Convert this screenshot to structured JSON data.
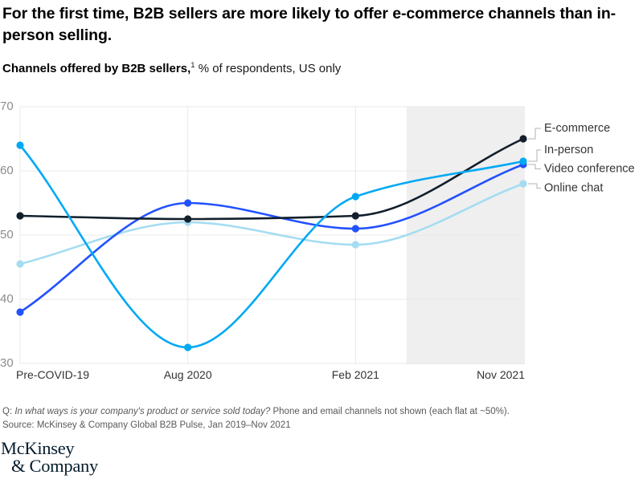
{
  "header": {
    "title": "For the first time, B2B sellers are more likely to offer e-commerce channels than in-person selling.",
    "subtitle_bold": "Channels offered by B2B sellers,",
    "subtitle_sup": "1",
    "subtitle_rest": " % of respondents, US only"
  },
  "chart_data": {
    "type": "line",
    "title": "Channels offered by B2B sellers, % of respondents, US only",
    "categories": [
      "Pre-COVID-19",
      "Aug 2020",
      "Feb 2021",
      "Nov 2021"
    ],
    "series": [
      {
        "name": "E-commerce",
        "color": "#121f2c",
        "values": [
          53,
          52.5,
          53,
          65
        ]
      },
      {
        "name": "In-person",
        "color": "#00A9F4",
        "values": [
          64,
          32.5,
          56,
          61.5
        ]
      },
      {
        "name": "Video conference",
        "color": "#2251FF",
        "values": [
          38,
          55,
          51,
          61
        ]
      },
      {
        "name": "Online chat",
        "color": "#A4DCF2",
        "values": [
          45.5,
          52,
          48.5,
          58
        ]
      }
    ],
    "ylim": [
      30,
      70
    ],
    "yticks": [
      70,
      60,
      50,
      40,
      30
    ],
    "grid": true,
    "legend_position": "right",
    "highlight_region": {
      "from_frac": 0.768,
      "to_frac": 1.0,
      "color": "#efefef"
    },
    "grid_color": "#e8e8e8",
    "ytick_color": "#8c8c8c",
    "xtick_color": "#333333",
    "legend_text_color": "#333333",
    "connector_color": "#b3b3b3"
  },
  "footnote": {
    "q_prefix": "Q: ",
    "q_italic": "In what ways is your company's product or service sold today?",
    "q_rest": " Phone and email channels not shown (each flat at ~50%).",
    "source": "Source: McKinsey & Company Global B2B Pulse, Jan 2019–Nov 2021"
  },
  "logo": {
    "line1": "McKinsey",
    "line2": "& Company"
  }
}
